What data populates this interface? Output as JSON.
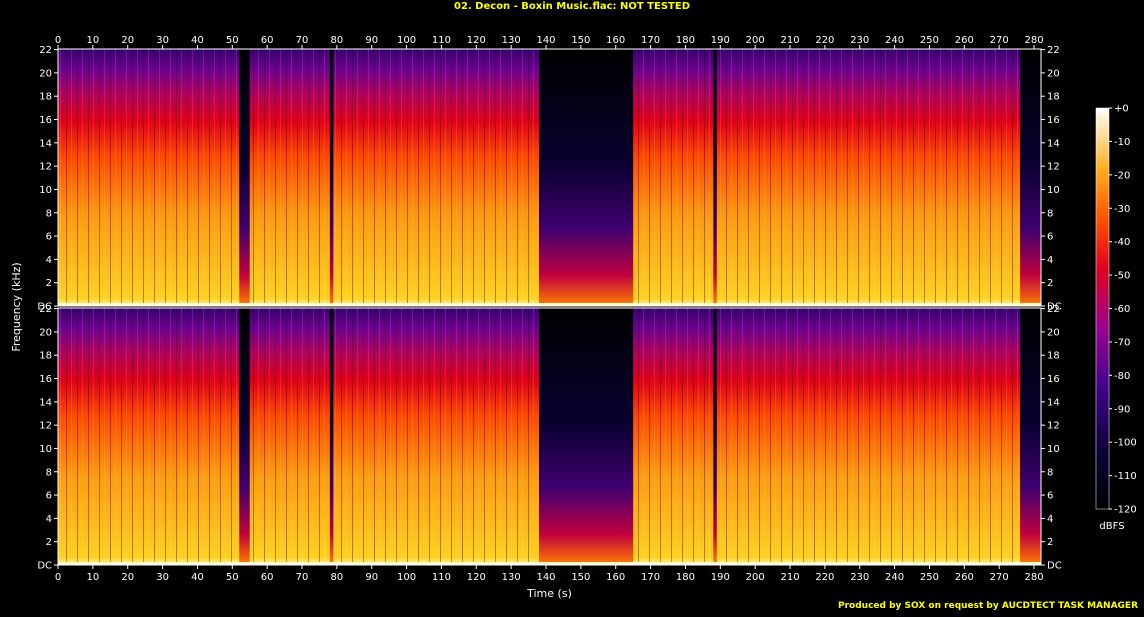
{
  "title": "02. Decon - Boxin Music.flac: NOT TESTED",
  "footer": "Produced by SOX on request by AUCDTECT TASK MANAGER",
  "chart_data": {
    "type": "heatmap",
    "title": "02. Decon - Boxin Music.flac: NOT TESTED",
    "xlabel": "Time (s)",
    "ylabel": "Frequency (kHz)",
    "xlim": [
      0,
      282
    ],
    "ylim": [
      0,
      22.05
    ],
    "x_ticks": [
      "0",
      "10",
      "20",
      "30",
      "40",
      "50",
      "60",
      "70",
      "80",
      "90",
      "100",
      "110",
      "120",
      "130",
      "140",
      "150",
      "160",
      "170",
      "180",
      "190",
      "200",
      "210",
      "220",
      "230",
      "240",
      "250",
      "260",
      "270",
      "280"
    ],
    "y_ticks": [
      "DC",
      "2",
      "4",
      "6",
      "8",
      "10",
      "12",
      "14",
      "16",
      "18",
      "20",
      "22"
    ],
    "channels": 2,
    "colorbar": {
      "label": "dBFS",
      "ticks": [
        "+0",
        "-10",
        "-20",
        "-30",
        "-40",
        "-50",
        "-60",
        "-70",
        "-80",
        "-90",
        "-100",
        "-110",
        "-120"
      ],
      "range": [
        -120,
        0
      ]
    },
    "gaps_s": [
      {
        "start": 52,
        "end": 55
      },
      {
        "start": 78,
        "end": 79
      },
      {
        "start": 138,
        "end": 165
      },
      {
        "start": 188,
        "end": 189
      },
      {
        "start": 276,
        "end": 282
      }
    ],
    "colors": {
      "axis": "#ffffff",
      "title": "#ffff00",
      "hot": "#ffff80",
      "mid": "#ff2000",
      "cool": "#800080",
      "cold": "#000000"
    }
  }
}
